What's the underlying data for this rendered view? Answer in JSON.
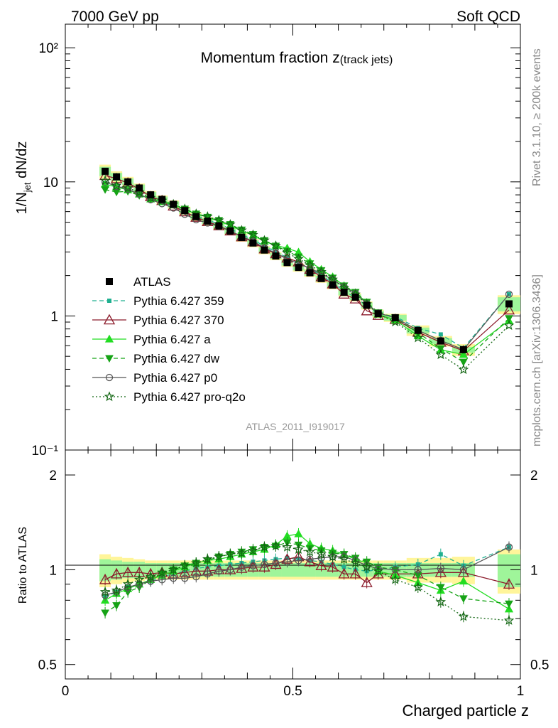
{
  "header": {
    "left": "7000 GeV pp",
    "right": "Soft QCD"
  },
  "side_labels": {
    "rivet": "Rivet 3.1.10, ≥ 200k events",
    "mcplots": "mcplots.cern.ch [arXiv:1306.3436]"
  },
  "chart_data": {
    "type": "line",
    "title": "Momentum fraction z",
    "title_sub": "(track jets)",
    "watermark": "ATLAS_2011_I919017",
    "xlabel": "Charged particle z",
    "ylabel": "1/N_jet dN/dz",
    "ylabel_parts": {
      "a": "1/N",
      "sub": "jet",
      "b": " dN/dz"
    },
    "ratio_ylabel": "Ratio to ATLAS",
    "xlim": [
      0,
      1
    ],
    "ylim": [
      0.1,
      150
    ],
    "yscale": "log",
    "ratio_ylim": [
      0.45,
      2.4
    ],
    "ratio_yscale": "log",
    "x_ticks": [
      {
        "v": 0,
        "t": "0"
      },
      {
        "v": 0.5,
        "t": "0.5"
      },
      {
        "v": 1,
        "t": "1"
      }
    ],
    "y_ticks": [
      {
        "v": 0.1,
        "t": "10⁻¹"
      },
      {
        "v": 1,
        "t": "1"
      },
      {
        "v": 10,
        "t": "10"
      },
      {
        "v": 100,
        "t": "10²"
      }
    ],
    "ratio_ticks": [
      {
        "v": 0.5,
        "t": "0.5"
      },
      {
        "v": 1,
        "t": "1"
      },
      {
        "v": 2,
        "t": "2"
      }
    ],
    "legend_position": "left-middle",
    "x": [
      0.0875,
      0.1125,
      0.1375,
      0.1625,
      0.1875,
      0.2125,
      0.2375,
      0.2625,
      0.2875,
      0.3125,
      0.3375,
      0.3625,
      0.3875,
      0.4125,
      0.4375,
      0.4625,
      0.4875,
      0.5125,
      0.5375,
      0.5625,
      0.5875,
      0.6125,
      0.6375,
      0.6625,
      0.6875,
      0.725,
      0.775,
      0.825,
      0.875,
      0.975
    ],
    "data": {
      "name": "ATLAS",
      "values": [
        12.0,
        10.9,
        10.0,
        9.0,
        8.0,
        7.4,
        6.8,
        6.1,
        5.5,
        5.1,
        4.7,
        4.3,
        3.85,
        3.5,
        3.1,
        2.8,
        2.5,
        2.3,
        2.1,
        1.9,
        1.7,
        1.5,
        1.38,
        1.2,
        1.04,
        0.97,
        0.78,
        0.65,
        0.56,
        1.23
      ]
    },
    "series": [
      {
        "name": "Pythia 6.427 359",
        "color": "#20b090",
        "dash": "6,4",
        "marker": "square",
        "ratio": [
          0.82,
          0.85,
          0.88,
          0.9,
          0.92,
          0.95,
          0.97,
          0.99,
          1.01,
          1.02,
          1.03,
          1.04,
          1.05,
          1.06,
          1.07,
          1.08,
          1.09,
          1.08,
          1.07,
          1.06,
          1.04,
          1.02,
          1.0,
          0.99,
          1.0,
          1.02,
          1.04,
          1.12,
          1.03,
          1.18
        ]
      },
      {
        "name": "Pythia 6.427 370",
        "color": "#8b1a2a",
        "dash": "",
        "marker": "triangle-open",
        "ratio": [
          0.93,
          0.97,
          0.98,
          0.98,
          0.97,
          0.98,
          0.97,
          0.98,
          0.99,
          0.99,
          1.0,
          1.0,
          1.01,
          1.02,
          1.02,
          1.04,
          1.08,
          1.1,
          1.06,
          1.03,
          1.02,
          0.97,
          0.97,
          0.91,
          0.97,
          0.97,
          0.97,
          0.98,
          0.98,
          0.9
        ]
      },
      {
        "name": "Pythia 6.427 a",
        "color": "#22dd22",
        "dash": "",
        "marker": "triangle",
        "ratio": [
          0.8,
          0.84,
          0.87,
          0.9,
          0.93,
          0.96,
          0.99,
          1.02,
          1.05,
          1.07,
          1.08,
          1.1,
          1.12,
          1.14,
          1.16,
          1.2,
          1.28,
          1.3,
          1.21,
          1.17,
          1.15,
          1.12,
          1.08,
          1.05,
          0.99,
          0.96,
          0.91,
          0.86,
          0.92,
          0.75
        ]
      },
      {
        "name": "Pythia 6.427 dw",
        "color": "#16a316",
        "dash": "6,4",
        "marker": "triangle-down",
        "ratio": [
          0.73,
          0.77,
          0.85,
          0.88,
          0.93,
          0.97,
          1.0,
          1.03,
          1.05,
          1.07,
          1.1,
          1.12,
          1.14,
          1.16,
          1.18,
          1.19,
          1.22,
          1.2,
          1.17,
          1.15,
          1.13,
          1.12,
          1.09,
          1.06,
          1.02,
          1.0,
          0.96,
          0.88,
          0.81,
          0.78
        ]
      },
      {
        "name": "Pythia 6.427 p0",
        "color": "#555555",
        "dash": "",
        "marker": "circle-open",
        "ratio": [
          0.83,
          0.85,
          0.88,
          0.9,
          0.92,
          0.93,
          0.94,
          0.94,
          0.95,
          0.97,
          0.99,
          1.0,
          1.02,
          1.03,
          1.04,
          1.05,
          1.06,
          1.07,
          1.08,
          1.09,
          1.1,
          1.1,
          1.07,
          1.03,
          1.01,
          1.0,
          1.0,
          1.01,
          1.0,
          1.18
        ]
      },
      {
        "name": "Pythia 6.427 pro-q2o",
        "color": "#126612",
        "dash": "2,3",
        "marker": "star-open",
        "ratio": [
          0.85,
          0.86,
          0.9,
          0.93,
          0.95,
          0.98,
          1.0,
          1.03,
          1.05,
          1.08,
          1.1,
          1.12,
          1.13,
          1.15,
          1.18,
          1.19,
          1.18,
          1.16,
          1.14,
          1.12,
          1.1,
          1.08,
          1.05,
          1.02,
          0.99,
          0.93,
          0.88,
          0.79,
          0.71,
          0.69
        ]
      }
    ],
    "band": {
      "x_edges": [
        0.075,
        0.1,
        0.125,
        0.15,
        0.175,
        0.2,
        0.225,
        0.25,
        0.275,
        0.3,
        0.325,
        0.35,
        0.375,
        0.4,
        0.425,
        0.45,
        0.475,
        0.5,
        0.525,
        0.55,
        0.575,
        0.6,
        0.625,
        0.65,
        0.675,
        0.7,
        0.75,
        0.8,
        0.85,
        0.9,
        0.95,
        1.0
      ],
      "inner": [
        0.08,
        0.07,
        0.06,
        0.06,
        0.05,
        0.05,
        0.05,
        0.05,
        0.05,
        0.05,
        0.05,
        0.05,
        0.05,
        0.05,
        0.05,
        0.05,
        0.05,
        0.05,
        0.05,
        0.05,
        0.05,
        0.05,
        0.05,
        0.05,
        0.05,
        0.05,
        0.05,
        0.05,
        0.05,
        0.0,
        0.12
      ],
      "outer": [
        0.12,
        0.1,
        0.09,
        0.08,
        0.07,
        0.07,
        0.07,
        0.07,
        0.07,
        0.07,
        0.07,
        0.07,
        0.07,
        0.07,
        0.07,
        0.07,
        0.07,
        0.07,
        0.07,
        0.07,
        0.07,
        0.07,
        0.07,
        0.07,
        0.07,
        0.07,
        0.09,
        0.09,
        0.1,
        0.0,
        0.16
      ]
    }
  }
}
